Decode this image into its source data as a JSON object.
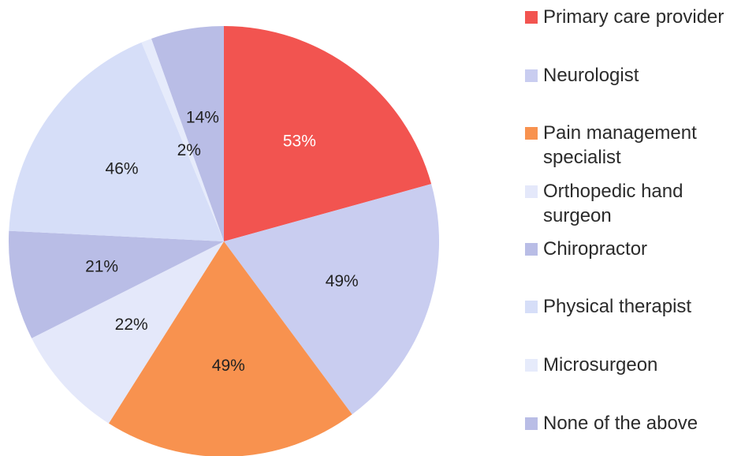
{
  "chart_data": {
    "type": "pie",
    "categories": [
      "Primary care provider",
      "Neurologist",
      "Pain management specialist",
      "Orthopedic hand surgeon",
      "Chiropractor",
      "Physical therapist",
      "Microsurgeon",
      "None of the above"
    ],
    "values": [
      53,
      49,
      49,
      22,
      21,
      46,
      2,
      14
    ],
    "value_labels": [
      "53%",
      "49%",
      "49%",
      "22%",
      "21%",
      "46%",
      "2%",
      "14%"
    ],
    "colors": [
      "#f25450",
      "#c9cdf0",
      "#f8924f",
      "#e4e8fa",
      "#b9bde6",
      "#d6def8",
      "#e6ebfb",
      "#b9bde6"
    ]
  }
}
